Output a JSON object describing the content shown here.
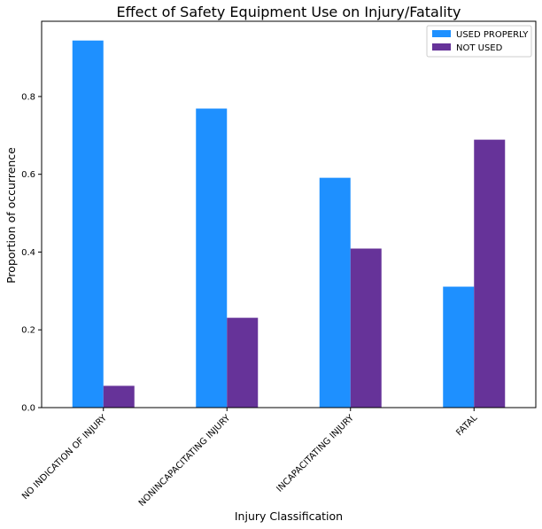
{
  "chart_data": {
    "type": "bar",
    "title": "Effect of Safety Equipment Use on Injury/Fatality",
    "xlabel": "Injury Classification",
    "ylabel": "Proportion of occurrence",
    "categories": [
      "NO INDICATION OF INJURY",
      "NONINCAPACITATING INJURY",
      "INCAPACITATING INJURY",
      "FATAL"
    ],
    "series": [
      {
        "name": "USED PROPERLY",
        "color": "#1e90ff",
        "values": [
          0.944,
          0.769,
          0.591,
          0.311
        ]
      },
      {
        "name": "NOT USED",
        "color": "#663399",
        "values": [
          0.056,
          0.231,
          0.409,
          0.689
        ]
      }
    ],
    "ylim": [
      0,
      0.9935
    ],
    "yticks": [
      "0.0",
      "0.2",
      "0.4",
      "0.6",
      "0.8"
    ],
    "grid": false,
    "legend_position": "top-right"
  }
}
